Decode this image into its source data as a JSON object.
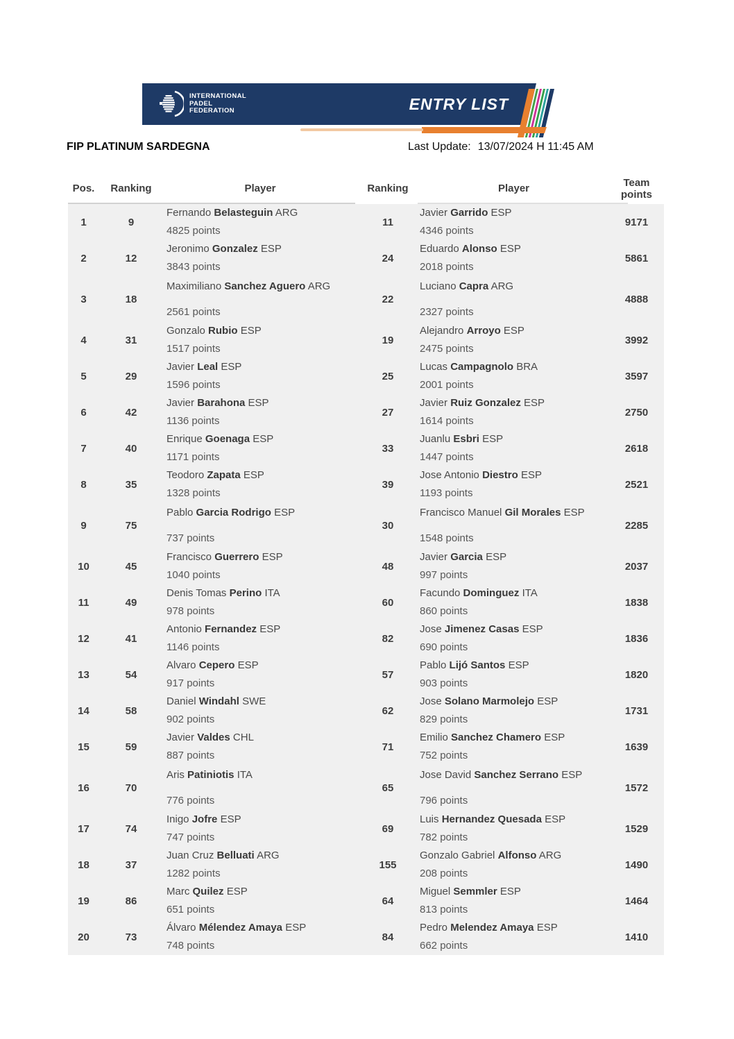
{
  "banner": {
    "logo_lines": [
      "INTERNATIONAL",
      "PADEL",
      "FEDERATION"
    ],
    "entry_list_label": "ENTRY LIST",
    "colors": {
      "navy": "#1e3a66",
      "orange": "#e8802f",
      "peach": "#f2c9a2",
      "stripes": [
        "#e8802f",
        "#43a24a",
        "#cc3399",
        "#35a14c",
        "#2fa3a0",
        "#1e3a66"
      ]
    }
  },
  "titlebar": {
    "title": "FIP PLATINUM SARDEGNA",
    "last_update_label": "Last Update:",
    "last_update_value": "13/07/2024 H 11:45 AM"
  },
  "table": {
    "columns": [
      "Pos.",
      "Ranking",
      "Player",
      "Ranking",
      "Player",
      "Team points"
    ],
    "rows": [
      {
        "pos": "1",
        "ranking_a": "9",
        "player_a": {
          "first": "Fernando",
          "last": "Belasteguin",
          "country": "ARG",
          "points": "4825 points"
        },
        "ranking_b": "11",
        "player_b": {
          "first": "Javier",
          "last": "Garrido",
          "country": "ESP",
          "points": "4346 points"
        },
        "team_points": "9171",
        "tall": false
      },
      {
        "pos": "2",
        "ranking_a": "12",
        "player_a": {
          "first": "Jeronimo",
          "last": "Gonzalez",
          "country": "ESP",
          "points": "3843 points"
        },
        "ranking_b": "24",
        "player_b": {
          "first": "Eduardo",
          "last": "Alonso",
          "country": "ESP",
          "points": "2018 points"
        },
        "team_points": "5861",
        "tall": false
      },
      {
        "pos": "3",
        "ranking_a": "18",
        "player_a": {
          "first": "Maximiliano",
          "last": "Sanchez Aguero",
          "country": "ARG",
          "points": "2561 points"
        },
        "ranking_b": "22",
        "player_b": {
          "first": "Luciano",
          "last": "Capra",
          "country": "ARG",
          "points": "2327 points"
        },
        "team_points": "4888",
        "tall": true
      },
      {
        "pos": "4",
        "ranking_a": "31",
        "player_a": {
          "first": "Gonzalo",
          "last": "Rubio",
          "country": "ESP",
          "points": "1517 points"
        },
        "ranking_b": "19",
        "player_b": {
          "first": "Alejandro",
          "last": "Arroyo",
          "country": "ESP",
          "points": "2475 points"
        },
        "team_points": "3992",
        "tall": false
      },
      {
        "pos": "5",
        "ranking_a": "29",
        "player_a": {
          "first": "Javier",
          "last": "Leal",
          "country": "ESP",
          "points": "1596 points"
        },
        "ranking_b": "25",
        "player_b": {
          "first": "Lucas",
          "last": "Campagnolo",
          "country": "BRA",
          "points": "2001 points"
        },
        "team_points": "3597",
        "tall": false
      },
      {
        "pos": "6",
        "ranking_a": "42",
        "player_a": {
          "first": "Javier",
          "last": "Barahona",
          "country": "ESP",
          "points": "1136 points"
        },
        "ranking_b": "27",
        "player_b": {
          "first": "Javier",
          "last": "Ruiz Gonzalez",
          "country": "ESP",
          "points": "1614 points"
        },
        "team_points": "2750",
        "tall": false
      },
      {
        "pos": "7",
        "ranking_a": "40",
        "player_a": {
          "first": "Enrique",
          "last": "Goenaga",
          "country": "ESP",
          "points": "1171 points"
        },
        "ranking_b": "33",
        "player_b": {
          "first": "Juanlu",
          "last": "Esbri",
          "country": "ESP",
          "points": "1447 points"
        },
        "team_points": "2618",
        "tall": false
      },
      {
        "pos": "8",
        "ranking_a": "35",
        "player_a": {
          "first": "Teodoro",
          "last": "Zapata",
          "country": "ESP",
          "points": "1328 points"
        },
        "ranking_b": "39",
        "player_b": {
          "first": "Jose Antonio",
          "last": "Diestro",
          "country": "ESP",
          "points": "1193 points"
        },
        "team_points": "2521",
        "tall": false
      },
      {
        "pos": "9",
        "ranking_a": "75",
        "player_a": {
          "first": "Pablo",
          "last": "Garcia Rodrigo",
          "country": "ESP",
          "points": "737 points"
        },
        "ranking_b": "30",
        "player_b": {
          "first": "Francisco Manuel",
          "last": "Gil Morales",
          "country": "ESP",
          "points": "1548 points"
        },
        "team_points": "2285",
        "tall": true
      },
      {
        "pos": "10",
        "ranking_a": "45",
        "player_a": {
          "first": "Francisco",
          "last": "Guerrero",
          "country": "ESP",
          "points": "1040 points"
        },
        "ranking_b": "48",
        "player_b": {
          "first": "Javier",
          "last": "Garcia",
          "country": "ESP",
          "points": "997 points"
        },
        "team_points": "2037",
        "tall": false
      },
      {
        "pos": "11",
        "ranking_a": "49",
        "player_a": {
          "first": "Denis Tomas",
          "last": "Perino",
          "country": "ITA",
          "points": "978 points"
        },
        "ranking_b": "60",
        "player_b": {
          "first": "Facundo",
          "last": "Dominguez",
          "country": "ITA",
          "points": "860 points"
        },
        "team_points": "1838",
        "tall": false
      },
      {
        "pos": "12",
        "ranking_a": "41",
        "player_a": {
          "first": "Antonio",
          "last": "Fernandez",
          "country": "ESP",
          "points": "1146 points"
        },
        "ranking_b": "82",
        "player_b": {
          "first": "Jose",
          "last": "Jimenez Casas",
          "country": "ESP",
          "points": "690 points"
        },
        "team_points": "1836",
        "tall": false
      },
      {
        "pos": "13",
        "ranking_a": "54",
        "player_a": {
          "first": "Alvaro",
          "last": "Cepero",
          "country": "ESP",
          "points": "917 points"
        },
        "ranking_b": "57",
        "player_b": {
          "first": "Pablo",
          "last": "Lijó Santos",
          "country": "ESP",
          "points": "903 points"
        },
        "team_points": "1820",
        "tall": false
      },
      {
        "pos": "14",
        "ranking_a": "58",
        "player_a": {
          "first": "Daniel",
          "last": "Windahl",
          "country": "SWE",
          "points": "902 points"
        },
        "ranking_b": "62",
        "player_b": {
          "first": "Jose",
          "last": "Solano Marmolejo",
          "country": "ESP",
          "points": "829 points"
        },
        "team_points": "1731",
        "tall": false
      },
      {
        "pos": "15",
        "ranking_a": "59",
        "player_a": {
          "first": "Javier",
          "last": "Valdes",
          "country": "CHL",
          "points": "887 points"
        },
        "ranking_b": "71",
        "player_b": {
          "first": "Emilio",
          "last": "Sanchez Chamero",
          "country": "ESP",
          "points": "752 points"
        },
        "team_points": "1639",
        "tall": false
      },
      {
        "pos": "16",
        "ranking_a": "70",
        "player_a": {
          "first": "Aris",
          "last": "Patiniotis",
          "country": "ITA",
          "points": "776 points"
        },
        "ranking_b": "65",
        "player_b": {
          "first": "Jose David",
          "last": "Sanchez Serrano",
          "country": "ESP",
          "points": "796 points"
        },
        "team_points": "1572",
        "tall": true
      },
      {
        "pos": "17",
        "ranking_a": "74",
        "player_a": {
          "first": "Inigo",
          "last": "Jofre",
          "country": "ESP",
          "points": "747 points"
        },
        "ranking_b": "69",
        "player_b": {
          "first": "Luis",
          "last": "Hernandez Quesada",
          "country": "ESP",
          "points": "782 points"
        },
        "team_points": "1529",
        "tall": false
      },
      {
        "pos": "18",
        "ranking_a": "37",
        "player_a": {
          "first": "Juan Cruz",
          "last": "Belluati",
          "country": "ARG",
          "points": "1282 points"
        },
        "ranking_b": "155",
        "player_b": {
          "first": "Gonzalo Gabriel",
          "last": "Alfonso",
          "country": "ARG",
          "points": "208 points"
        },
        "team_points": "1490",
        "tall": false
      },
      {
        "pos": "19",
        "ranking_a": "86",
        "player_a": {
          "first": "Marc",
          "last": "Quilez",
          "country": "ESP",
          "points": "651 points"
        },
        "ranking_b": "64",
        "player_b": {
          "first": "Miguel",
          "last": "Semmler",
          "country": "ESP",
          "points": "813 points"
        },
        "team_points": "1464",
        "tall": false
      },
      {
        "pos": "20",
        "ranking_a": "73",
        "player_a": {
          "first": "Álvaro",
          "last": "Mélendez Amaya",
          "country": "ESP",
          "points": "748 points"
        },
        "ranking_b": "84",
        "player_b": {
          "first": "Pedro",
          "last": "Melendez Amaya",
          "country": "ESP",
          "points": "662 points"
        },
        "team_points": "1410",
        "tall": false
      }
    ]
  }
}
